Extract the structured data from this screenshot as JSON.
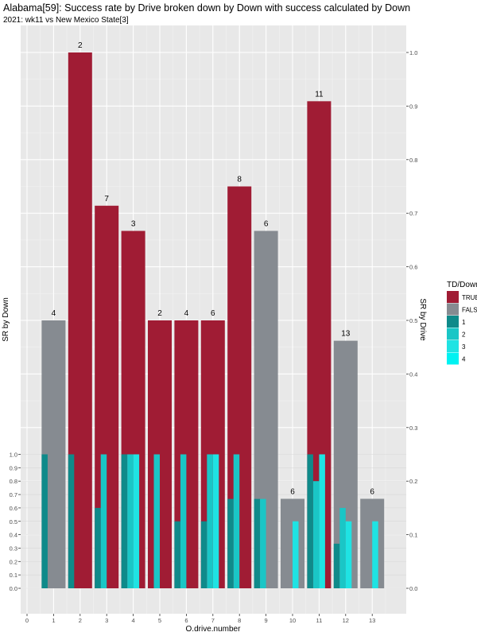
{
  "chart_data": {
    "type": "bar",
    "title": "Alabama[59]: Success rate by Drive broken down by Down with success calculated by Down",
    "subtitle": "2021: wk11 vs New Mexico State[3]",
    "xlabel": "O.drive.number",
    "ylabel_left": "SR by Down",
    "ylabel_right": "SR by Drive",
    "x_ticks": [
      "0",
      "1",
      "2",
      "3",
      "4",
      "5",
      "6",
      "7",
      "8",
      "9",
      "10",
      "11",
      "12",
      "13"
    ],
    "y_right_ticks": [
      "0.0",
      "0.1",
      "0.2",
      "0.3",
      "0.4",
      "0.5",
      "0.6",
      "0.7",
      "0.8",
      "0.9",
      "1.0"
    ],
    "y_left_ticks": [
      "0.0",
      "0.1",
      "0.2",
      "0.3",
      "0.4",
      "0.5",
      "0.6",
      "0.7",
      "0.8",
      "0.9",
      "1.0"
    ],
    "y_right_range": [
      0,
      1.0
    ],
    "y_left_range": [
      0,
      1.0
    ],
    "legend": {
      "title": "TD/Down",
      "position": "right",
      "entries": [
        {
          "label": "TRUE",
          "color": "#a01c34"
        },
        {
          "label": "FALSE",
          "color": "#868b91"
        },
        {
          "label": "1",
          "color": "#0f8a8a"
        },
        {
          "label": "2",
          "color": "#1ac6c6"
        },
        {
          "label": "3",
          "color": "#1fe3e3"
        },
        {
          "label": "4",
          "color": "#00f2f2"
        }
      ]
    },
    "drives": [
      {
        "drive": 1,
        "td": false,
        "sr": 0.5,
        "plays": "4"
      },
      {
        "drive": 2,
        "td": true,
        "sr": 1.0,
        "plays": "2"
      },
      {
        "drive": 3,
        "td": true,
        "sr": 0.714,
        "plays": "7"
      },
      {
        "drive": 4,
        "td": true,
        "sr": 0.667,
        "plays": "3"
      },
      {
        "drive": 5,
        "td": true,
        "sr": 0.5,
        "plays": "2"
      },
      {
        "drive": 6,
        "td": true,
        "sr": 0.5,
        "plays": "4"
      },
      {
        "drive": 7,
        "td": true,
        "sr": 0.5,
        "plays": "6"
      },
      {
        "drive": 8,
        "td": true,
        "sr": 0.75,
        "plays": "8"
      },
      {
        "drive": 9,
        "td": false,
        "sr": 0.667,
        "plays": "6"
      },
      {
        "drive": 10,
        "td": false,
        "sr": 0.167,
        "plays": "6"
      },
      {
        "drive": 11,
        "td": true,
        "sr": 0.909,
        "plays": "11"
      },
      {
        "drive": 12,
        "td": false,
        "sr": 0.462,
        "plays": "13"
      },
      {
        "drive": 13,
        "td": false,
        "sr": 0.167,
        "plays": "6"
      }
    ],
    "downs": [
      {
        "drive": 1,
        "down": 1,
        "sr": 1.0
      },
      {
        "drive": 2,
        "down": 1,
        "sr": 1.0
      },
      {
        "drive": 3,
        "down": 1,
        "sr": 0.6
      },
      {
        "drive": 3,
        "down": 2,
        "sr": 1.0
      },
      {
        "drive": 4,
        "down": 1,
        "sr": 1.0
      },
      {
        "drive": 4,
        "down": 2,
        "sr": 1.0
      },
      {
        "drive": 4,
        "down": 3,
        "sr": 1.0
      },
      {
        "drive": 5,
        "down": 2,
        "sr": 1.0
      },
      {
        "drive": 6,
        "down": 1,
        "sr": 0.5
      },
      {
        "drive": 6,
        "down": 2,
        "sr": 1.0
      },
      {
        "drive": 7,
        "down": 1,
        "sr": 0.5
      },
      {
        "drive": 7,
        "down": 2,
        "sr": 1.0
      },
      {
        "drive": 7,
        "down": 3,
        "sr": 1.0
      },
      {
        "drive": 8,
        "down": 1,
        "sr": 0.667
      },
      {
        "drive": 8,
        "down": 2,
        "sr": 1.0
      },
      {
        "drive": 9,
        "down": 1,
        "sr": 0.667
      },
      {
        "drive": 9,
        "down": 2,
        "sr": 0.667
      },
      {
        "drive": 10,
        "down": 3,
        "sr": 0.5
      },
      {
        "drive": 11,
        "down": 1,
        "sr": 1.0
      },
      {
        "drive": 11,
        "down": 2,
        "sr": 0.8
      },
      {
        "drive": 11,
        "down": 3,
        "sr": 1.0
      },
      {
        "drive": 12,
        "down": 1,
        "sr": 0.333
      },
      {
        "drive": 12,
        "down": 2,
        "sr": 0.6
      },
      {
        "drive": 12,
        "down": 3,
        "sr": 0.5
      },
      {
        "drive": 13,
        "down": 3,
        "sr": 0.5
      }
    ],
    "grid": true
  }
}
